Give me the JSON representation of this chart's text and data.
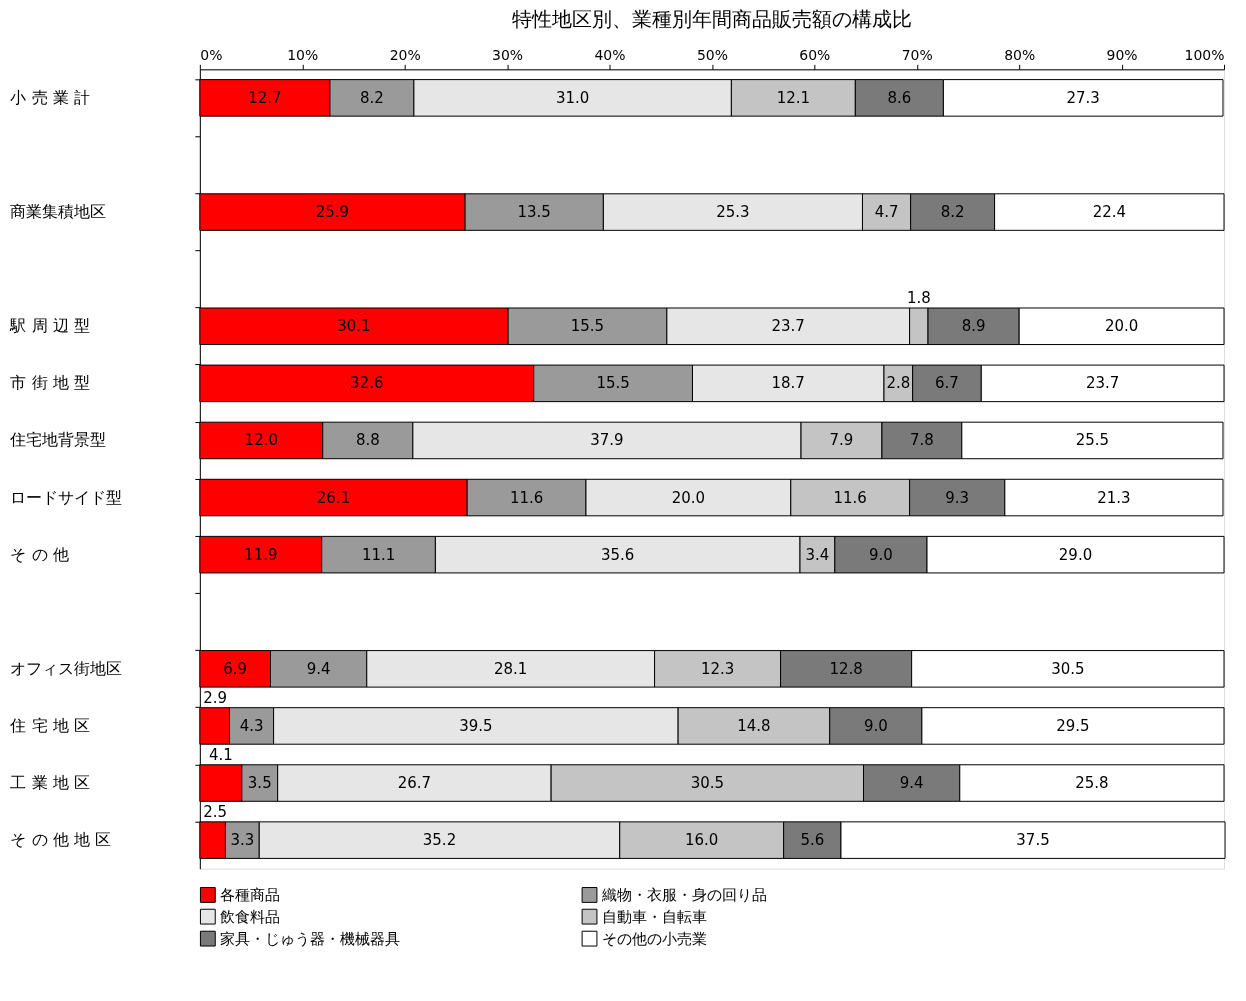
{
  "chart_data": {
    "type": "bar",
    "orientation": "horizontal",
    "stacked": true,
    "grid": false,
    "legend": "bottom",
    "title": "特性地区別、業種別年間商品販売額の構成比",
    "categories": [
      "小 売 業 計",
      null,
      "商業集積地区",
      null,
      "駅 周 辺 型",
      "市 街 地 型",
      "住宅地背景型",
      "ロードサイド型",
      "そ の 他",
      null,
      "オフィス街地区",
      "住 宅 地 区",
      "工 業 地 区",
      "そ の 他 地 区"
    ],
    "xlim": [
      0,
      100
    ],
    "xticks": [
      {
        "value": 0,
        "label": "0%"
      },
      {
        "value": 10,
        "label": "10%"
      },
      {
        "value": 20,
        "label": "20%"
      },
      {
        "value": 30,
        "label": "30%"
      },
      {
        "value": 40,
        "label": "40%"
      },
      {
        "value": 50,
        "label": "50%"
      },
      {
        "value": 60,
        "label": "60%"
      },
      {
        "value": 70,
        "label": "70%"
      },
      {
        "value": 80,
        "label": "80%"
      },
      {
        "value": 90,
        "label": "90%"
      },
      {
        "value": 100,
        "label": "100%"
      }
    ],
    "series": [
      {
        "name": "各種商品",
        "color": "#ff0000",
        "values": [
          12.7,
          null,
          25.9,
          null,
          30.1,
          32.6,
          12.0,
          26.1,
          11.9,
          null,
          6.9,
          2.9,
          4.1,
          2.5
        ],
        "value_labels": [
          "12.7",
          null,
          "25.9",
          null,
          "30.1",
          "32.6",
          "12.0",
          "26.1",
          "11.9",
          null,
          "6.9",
          "2.9",
          "4.1",
          "2.5"
        ]
      },
      {
        "name": "織物・衣服・身の回り品",
        "color": "#9a9a9a",
        "values": [
          8.2,
          null,
          13.5,
          null,
          15.5,
          15.5,
          8.8,
          11.6,
          11.1,
          null,
          9.4,
          4.3,
          3.5,
          3.3
        ],
        "value_labels": [
          "8.2",
          null,
          "13.5",
          null,
          "15.5",
          "15.5",
          "8.8",
          "11.6",
          "11.1",
          null,
          "9.4",
          "4.3",
          "3.5",
          "3.3"
        ]
      },
      {
        "name": "飲食料品",
        "color": "#e6e6e6",
        "values": [
          31.0,
          null,
          25.3,
          null,
          23.7,
          18.7,
          37.9,
          20.0,
          35.6,
          null,
          28.1,
          39.5,
          26.7,
          35.2
        ],
        "value_labels": [
          "31.0",
          null,
          "25.3",
          null,
          "23.7",
          "18.7",
          "37.9",
          "20.0",
          "35.6",
          null,
          "28.1",
          "39.5",
          "26.7",
          "35.2"
        ]
      },
      {
        "name": "自動車・自転車",
        "color": "#c4c4c4",
        "values": [
          12.1,
          null,
          4.7,
          null,
          1.8,
          2.8,
          7.9,
          11.6,
          3.4,
          null,
          12.3,
          14.8,
          30.5,
          16.0
        ],
        "value_labels": [
          "12.1",
          null,
          "4.7",
          null,
          "1.8",
          "2.8",
          "7.9",
          "11.6",
          "3.4",
          null,
          "12.3",
          "14.8",
          "30.5",
          "16.0"
        ]
      },
      {
        "name": "家具・じゅう器・機械器具",
        "color": "#7a7a7a",
        "values": [
          8.6,
          null,
          8.2,
          null,
          8.9,
          6.7,
          7.8,
          9.3,
          9.0,
          null,
          12.8,
          9.0,
          9.4,
          5.6
        ],
        "value_labels": [
          "8.6",
          null,
          "8.2",
          null,
          "8.9",
          "6.7",
          "7.8",
          "9.3",
          "9.0",
          null,
          "12.8",
          "9.0",
          "9.4",
          "5.6"
        ]
      },
      {
        "name": "その他の小売業",
        "color": "#ffffff",
        "values": [
          27.3,
          null,
          22.4,
          null,
          20.0,
          23.7,
          25.5,
          21.3,
          29.0,
          null,
          30.5,
          29.5,
          25.8,
          37.5
        ],
        "value_labels": [
          "27.3",
          null,
          "22.4",
          null,
          "20.0",
          "23.7",
          "25.5",
          "21.3",
          "29.0",
          null,
          "30.5",
          "29.5",
          "25.8",
          "37.5"
        ]
      }
    ]
  }
}
